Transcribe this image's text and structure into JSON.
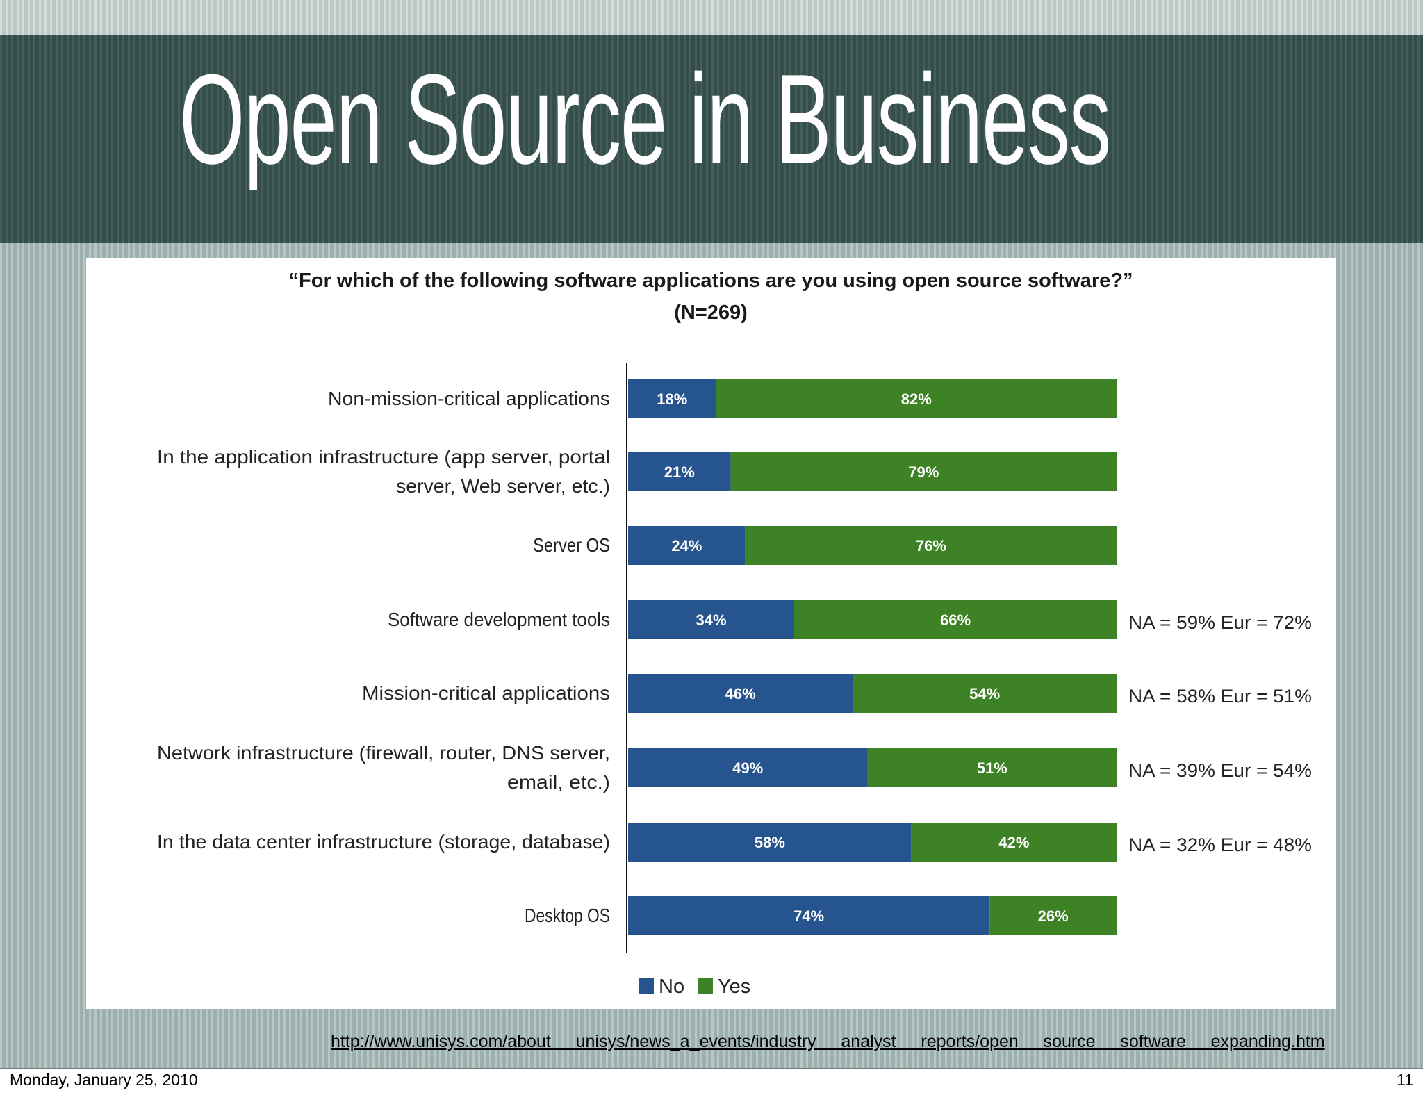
{
  "slide": {
    "title": "Open Source in Business",
    "source_url": "http://www.unisys.com/about    unisys/news_a_events/industry    analyst    reports/open    source    software    expanding.htm"
  },
  "footer": {
    "date": "Monday, January 25, 2010",
    "page": "11"
  },
  "colors": {
    "no": "#26548f",
    "yes": "#3d8224",
    "banner": "#3a5653"
  },
  "chart_data": {
    "type": "bar",
    "orientation": "horizontal",
    "stacked": true,
    "title": "“For which of the following software applications are you using open source software?”",
    "subtitle": "(N=269)",
    "categories": [
      [
        "Non-mission-critical applications"
      ],
      [
        "In the application infrastructure (app server, portal",
        "server, Web server, etc.)"
      ],
      [
        "Server OS"
      ],
      [
        "Software development tools"
      ],
      [
        "Mission-critical applications"
      ],
      [
        "Network infrastructure (firewall, router, DNS server,",
        "email, etc.)"
      ],
      [
        "In the data center infrastructure (storage, database)"
      ],
      [
        "Desktop OS"
      ]
    ],
    "series": [
      {
        "name": "No",
        "values": [
          18,
          21,
          24,
          34,
          46,
          49,
          58,
          74
        ]
      },
      {
        "name": "Yes",
        "values": [
          82,
          79,
          76,
          66,
          54,
          51,
          42,
          26
        ]
      }
    ],
    "unit": "%",
    "annotations": [
      "",
      "",
      "",
      "NA = 59% Eur = 72%",
      "NA = 58% Eur = 51%",
      "NA = 39% Eur = 54%",
      "NA = 32% Eur = 48%",
      ""
    ],
    "xlim": [
      0,
      100
    ],
    "xlabel": "",
    "ylabel": "",
    "grid": false,
    "legend": "bottom-center"
  }
}
